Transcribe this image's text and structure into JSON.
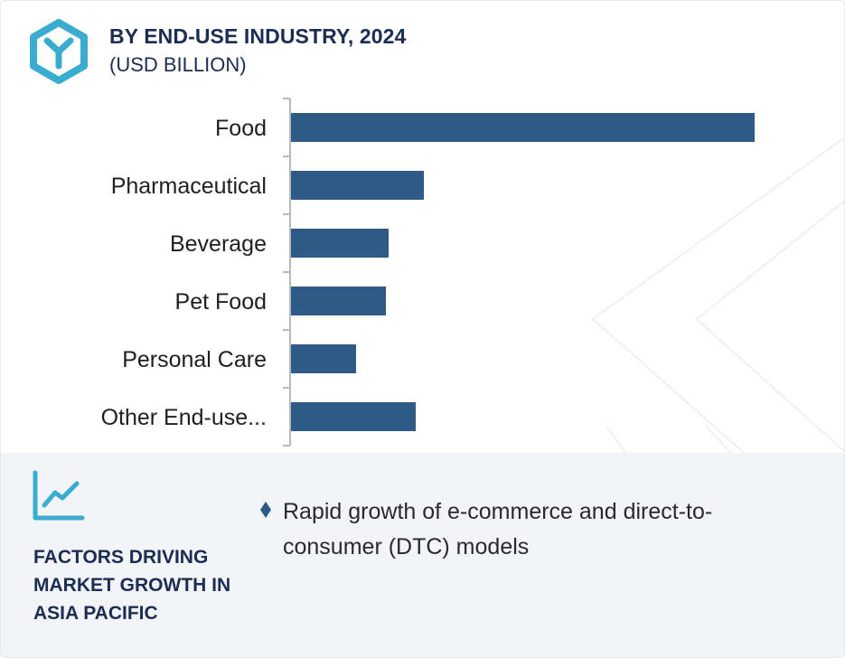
{
  "header": {
    "title": "BY END-USE INDUSTRY, 2024",
    "subtitle": "(USD BILLION)",
    "logo_icon": "hexagon-y-logo-icon"
  },
  "colors": {
    "bar": "#2e5a87",
    "title": "#1b2d52",
    "accent": "#3aaccf",
    "panel": "#f3f4f7"
  },
  "chart_data": {
    "type": "bar",
    "orientation": "horizontal",
    "categories": [
      "Food",
      "Pharmaceutical",
      "Beverage",
      "Pet Food",
      "Personal Care",
      "Other End-use..."
    ],
    "values": [
      17.1,
      4.9,
      3.6,
      3.5,
      2.4,
      4.6
    ],
    "title": "BY END-USE INDUSTRY, 2024",
    "subtitle": "(USD BILLION)",
    "xlim": [
      0,
      18
    ],
    "grid": false,
    "legend": "none"
  },
  "factors": {
    "icon": "trend-line-icon",
    "title": "FACTORS DRIVING MARKET GROWTH IN ASIA PACIFIC",
    "bullet_icon": "diamond-bullet-icon",
    "items": [
      "Rapid growth of e-commerce and direct-to-consumer (DTC) models"
    ]
  }
}
